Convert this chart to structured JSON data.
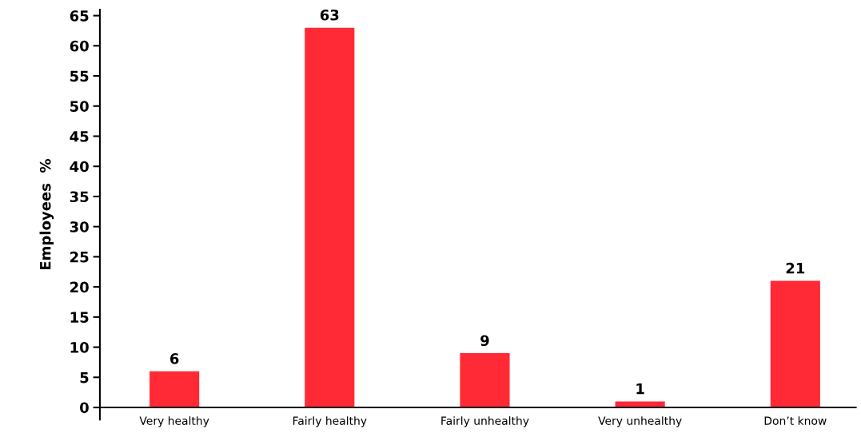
{
  "chart_data": {
    "type": "bar",
    "ylabel": "Employees  %",
    "categories": [
      "Very healthy",
      "Fairly healthy",
      "Fairly unhealthy",
      "Very unhealthy",
      "Don’t know"
    ],
    "values": [
      6,
      63,
      9,
      1,
      21
    ],
    "color": "#ff2a35",
    "ylim": [
      -2,
      66
    ],
    "yticks": [
      0,
      5,
      10,
      15,
      20,
      25,
      30,
      35,
      40,
      45,
      50,
      55,
      60,
      65
    ],
    "data_labels": true,
    "grid": false,
    "legend": false
  }
}
